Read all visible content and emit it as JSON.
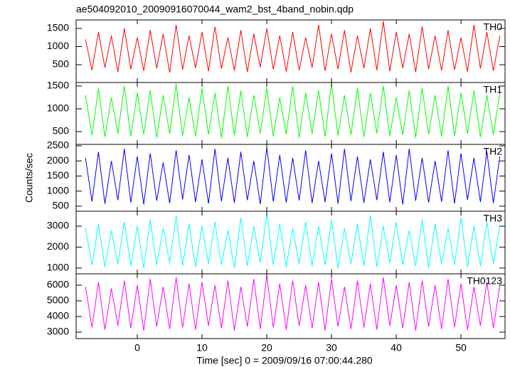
{
  "title": "ae504092010_20090916070044_wam2_bst_4band_nobin.qdp",
  "x_label": "Time [sec] 0 = 2009/09/16 07:00:44.280",
  "y_label": "Counts/sec",
  "chart_data": [
    {
      "type": "line",
      "label": "TH0",
      "color": "#ff0000",
      "xlim": [
        -9.45,
        56.8
      ],
      "xticks": [
        0,
        10,
        20,
        30,
        40,
        50
      ],
      "ylim": [
        10,
        1735
      ],
      "yticks": [
        500,
        1000,
        1500
      ],
      "x": [
        -8,
        -7,
        -6,
        -5,
        -4,
        -3,
        -2,
        -1,
        0,
        1,
        2,
        3,
        4,
        5,
        6,
        7,
        8,
        9,
        10,
        11,
        12,
        13,
        14,
        15,
        16,
        17,
        18,
        19,
        20,
        21,
        22,
        23,
        24,
        25,
        26,
        27,
        28,
        29,
        30,
        31,
        32,
        33,
        34,
        35,
        36,
        37,
        38,
        39,
        40,
        41,
        42,
        43,
        44,
        45,
        46,
        47,
        48,
        49,
        50,
        51,
        52,
        53,
        54,
        55,
        56
      ],
      "values": [
        1200,
        350,
        1400,
        420,
        1300,
        300,
        1500,
        380,
        1250,
        330,
        1450,
        400,
        1350,
        280,
        1600,
        360,
        1300,
        410,
        1400,
        320,
        1550,
        390,
        1250,
        340,
        1450,
        300,
        1350,
        430,
        1500,
        370,
        1300,
        310,
        1400,
        350,
        1250,
        420,
        1600,
        330,
        1350,
        380,
        1450,
        290,
        1300,
        400,
        1500,
        350,
        1700,
        320,
        1400,
        410,
        1350,
        300,
        1550,
        380,
        1300,
        340,
        1450,
        360,
        1250,
        310,
        1600,
        390,
        1400,
        330,
        1300
      ]
    },
    {
      "type": "line",
      "label": "TH1",
      "color": "#00ff00",
      "xlim": [
        -9.45,
        56.8
      ],
      "xticks": [
        0,
        10,
        20,
        30,
        40,
        50
      ],
      "ylim": [
        219,
        1578
      ],
      "yticks": [
        500,
        1000,
        1500
      ],
      "x": [
        -8,
        -7,
        -6,
        -5,
        -4,
        -3,
        -2,
        -1,
        0,
        1,
        2,
        3,
        4,
        5,
        6,
        7,
        8,
        9,
        10,
        11,
        12,
        13,
        14,
        15,
        16,
        17,
        18,
        19,
        20,
        21,
        22,
        23,
        24,
        25,
        26,
        27,
        28,
        29,
        30,
        31,
        32,
        33,
        34,
        35,
        36,
        37,
        38,
        39,
        40,
        41,
        42,
        43,
        44,
        45,
        46,
        47,
        48,
        49,
        50,
        51,
        52,
        53,
        54,
        55,
        56
      ],
      "values": [
        1300,
        420,
        1450,
        380,
        1250,
        460,
        1500,
        400,
        1350,
        440,
        1400,
        370,
        1300,
        450,
        1550,
        410,
        1250,
        390,
        1450,
        430,
        1350,
        360,
        1500,
        420,
        1400,
        380,
        1300,
        460,
        1450,
        400,
        1250,
        440,
        1500,
        370,
        1350,
        450,
        1400,
        390,
        1550,
        410,
        1300,
        430,
        1450,
        380,
        1350,
        460,
        1500,
        400,
        1250,
        420,
        1400,
        370,
        1450,
        440,
        1300,
        390,
        1500,
        410,
        1350,
        450,
        1400,
        380,
        1300,
        430,
        1350
      ]
    },
    {
      "type": "line",
      "label": "TH2",
      "color": "#0000ff",
      "xlim": [
        -9.45,
        56.8
      ],
      "xticks": [
        0,
        10,
        20,
        30,
        40,
        50
      ],
      "ylim": [
        333,
        2548
      ],
      "yticks": [
        500,
        1000,
        1500,
        2000,
        2500
      ],
      "x": [
        -8,
        -7,
        -6,
        -5,
        -4,
        -3,
        -2,
        -1,
        0,
        1,
        2,
        3,
        4,
        5,
        6,
        7,
        8,
        9,
        10,
        11,
        12,
        13,
        14,
        15,
        16,
        17,
        18,
        19,
        20,
        21,
        22,
        23,
        24,
        25,
        26,
        27,
        28,
        29,
        30,
        31,
        32,
        33,
        34,
        35,
        36,
        37,
        38,
        39,
        40,
        41,
        42,
        43,
        44,
        45,
        46,
        47,
        48,
        49,
        50,
        51,
        52,
        53,
        54,
        55,
        56
      ],
      "values": [
        2100,
        650,
        2300,
        580,
        2000,
        700,
        2400,
        620,
        2150,
        560,
        2250,
        680,
        1950,
        600,
        2350,
        720,
        2200,
        640,
        2050,
        590,
        2400,
        660,
        2100,
        610,
        2300,
        700,
        2000,
        570,
        2450,
        650,
        2200,
        620,
        2100,
        690,
        2350,
        600,
        2000,
        640,
        2250,
        580,
        2400,
        670,
        2150,
        610,
        2050,
        700,
        2300,
        630,
        2200,
        560,
        2400,
        680,
        2100,
        620,
        2000,
        650,
        2350,
        590,
        2250,
        710,
        2100,
        640,
        2300,
        600,
        2150
      ]
    },
    {
      "type": "line",
      "label": "TH3",
      "color": "#00ffff",
      "xlim": [
        -9.45,
        56.8
      ],
      "xticks": [
        0,
        10,
        20,
        30,
        40,
        50
      ],
      "ylim": [
        723,
        3712
      ],
      "yticks": [
        1000,
        2000,
        3000
      ],
      "x": [
        -8,
        -7,
        -6,
        -5,
        -4,
        -3,
        -2,
        -1,
        0,
        1,
        2,
        3,
        4,
        5,
        6,
        7,
        8,
        9,
        10,
        11,
        12,
        13,
        14,
        15,
        16,
        17,
        18,
        19,
        20,
        21,
        22,
        23,
        24,
        25,
        26,
        27,
        28,
        29,
        30,
        31,
        32,
        33,
        34,
        35,
        36,
        37,
        38,
        39,
        40,
        41,
        42,
        43,
        44,
        45,
        46,
        47,
        48,
        49,
        50,
        51,
        52,
        53,
        54,
        55,
        56
      ],
      "values": [
        2900,
        1150,
        3100,
        1050,
        2800,
        1200,
        3200,
        1100,
        3000,
        1000,
        3300,
        1150,
        2900,
        1250,
        3500,
        1100,
        3100,
        1050,
        3000,
        1200,
        3200,
        1150,
        2800,
        1000,
        3400,
        1100,
        3000,
        1250,
        3600,
        1150,
        3100,
        1050,
        2900,
        1200,
        3200,
        1100,
        3000,
        1150,
        3300,
        1000,
        2900,
        1200,
        3100,
        1100,
        3500,
        1050,
        3000,
        1250,
        3200,
        1150,
        2800,
        1100,
        3300,
        1000,
        3100,
        1200,
        2900,
        1150,
        3400,
        1050,
        3000,
        1100,
        3200,
        1200,
        3000
      ]
    },
    {
      "type": "line",
      "label": "TH0123",
      "color": "#ff00ff",
      "xlim": [
        -9.45,
        56.8
      ],
      "xticks": [
        0,
        10,
        20,
        30,
        40,
        50
      ],
      "ylim": [
        2591,
        6727
      ],
      "yticks": [
        3000,
        4000,
        5000,
        6000
      ],
      "x": [
        -8,
        -7,
        -6,
        -5,
        -4,
        -3,
        -2,
        -1,
        0,
        1,
        2,
        3,
        4,
        5,
        6,
        7,
        8,
        9,
        10,
        11,
        12,
        13,
        14,
        15,
        16,
        17,
        18,
        19,
        20,
        21,
        22,
        23,
        24,
        25,
        26,
        27,
        28,
        29,
        30,
        31,
        32,
        33,
        34,
        35,
        36,
        37,
        38,
        39,
        40,
        41,
        42,
        43,
        44,
        45,
        46,
        47,
        48,
        49,
        50,
        51,
        52,
        53,
        54,
        55,
        56
      ],
      "values": [
        5900,
        3300,
        6200,
        3150,
        5800,
        3400,
        6300,
        3250,
        6000,
        3100,
        6400,
        3350,
        5900,
        3200,
        6500,
        3300,
        6100,
        3150,
        6200,
        3400,
        6000,
        3250,
        6300,
        3100,
        5900,
        3350,
        6400,
        3200,
        6600,
        3300,
        6100,
        3150,
        6300,
        3400,
        6000,
        3250,
        6200,
        3100,
        6400,
        3350,
        5900,
        3200,
        6300,
        3300,
        6100,
        3150,
        6500,
        3400,
        6000,
        3250,
        6200,
        3100,
        6300,
        3350,
        6000,
        3200,
        6400,
        3300,
        6100,
        3150,
        5900,
        3400,
        6200,
        3250,
        6000
      ]
    }
  ]
}
